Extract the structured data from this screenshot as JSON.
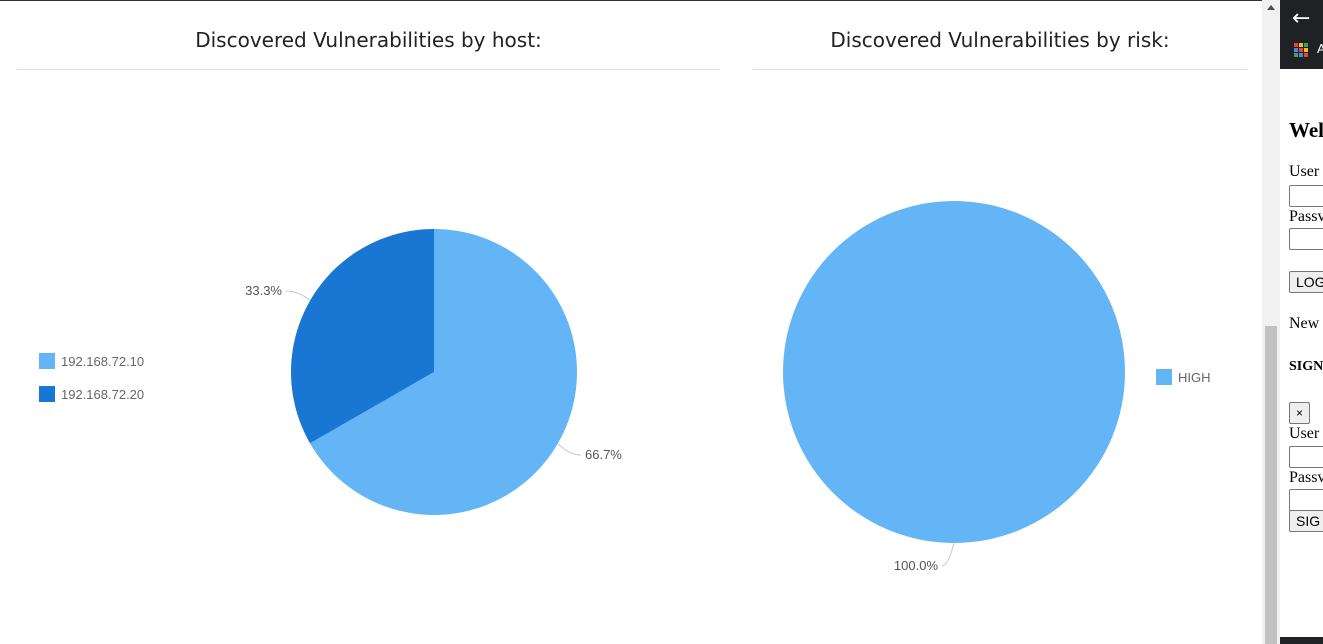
{
  "charts": {
    "by_host": {
      "title": "Discovered Vulnerabilities by host:"
    },
    "by_risk": {
      "title": "Discovered Vulnerabilities by risk:"
    }
  },
  "chart_data": [
    {
      "type": "pie",
      "title": "Discovered Vulnerabilities by host:",
      "categories": [
        "192.168.72.10",
        "192.168.72.20"
      ],
      "values": [
        66.7,
        33.3
      ],
      "labels": [
        "66.7%",
        "33.3%"
      ],
      "colors": [
        "#64b5f6",
        "#1976d2"
      ],
      "legend": "left"
    },
    {
      "type": "pie",
      "title": "Discovered Vulnerabilities by risk:",
      "categories": [
        "HIGH"
      ],
      "values": [
        100.0
      ],
      "labels": [
        "100.0%"
      ],
      "colors": [
        "#64b5f6"
      ],
      "legend": "right"
    }
  ],
  "sidebar": {
    "apps_text": "A",
    "welcome": "Wel",
    "username_label": "User",
    "password_label": "Passv",
    "login_button": "LOG",
    "new_text": "New",
    "signup_heading": "SIGN",
    "close_button": "×",
    "signup_username_label": "User",
    "signup_password_label": "Passv",
    "signup_button": "SIG"
  },
  "colors": {
    "accent_light": "#64b5f6",
    "accent_dark": "#1976d2",
    "topbar": "#202124"
  }
}
